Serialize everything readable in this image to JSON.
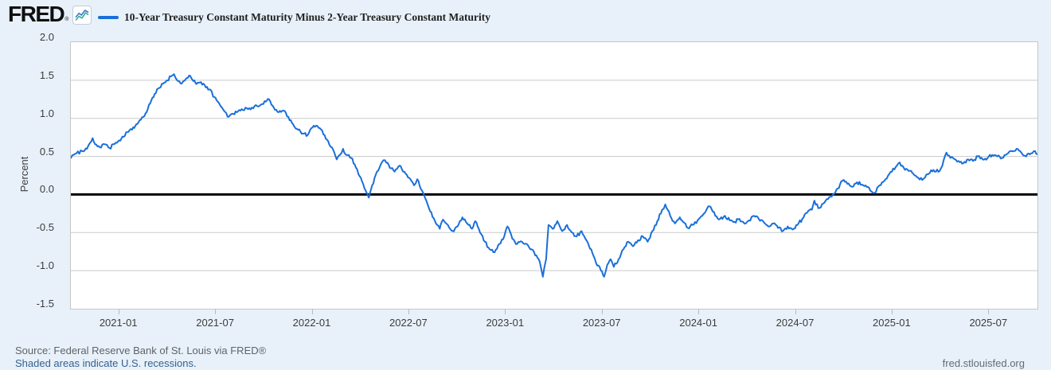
{
  "header": {
    "logo_text": "FRED",
    "logo_registered": "®",
    "legend_label": "10-Year Treasury Constant Maturity Minus 2-Year Treasury Constant Maturity"
  },
  "footer": {
    "source_line": "Source: Federal Reserve Bank of St. Louis via FRED®",
    "recessions_note": "Shaded areas indicate U.S. recessions.",
    "site_link": "fred.stlouisfed.org"
  },
  "colors": {
    "page_bg": "#e8f1fa",
    "plot_bg": "#ffffff",
    "gridline": "#cacaca",
    "plot_border": "#c6c6c6",
    "zero_line": "#000000",
    "series_line": "#1a6fd8",
    "tick_mark": "#aebccd",
    "badge_line_blue": "#3f7ac0",
    "badge_line_teal": "#3fae9e"
  },
  "chart_data": {
    "type": "line",
    "title": "10-Year Treasury Constant Maturity Minus 2-Year Treasury Constant Maturity",
    "xlabel": "",
    "ylabel": "Percent",
    "ylim": [
      -1.5,
      2.0
    ],
    "yticks": [
      2.0,
      1.5,
      1.0,
      0.5,
      0.0,
      -0.5,
      -1.0,
      -1.5
    ],
    "grid": true,
    "zero_line": true,
    "legend_position": "top-left",
    "x_start": "2020-10",
    "x_end": "2025-10",
    "x_total_months": 60,
    "xticks": [
      {
        "m": 3,
        "label": "2021-01"
      },
      {
        "m": 9,
        "label": "2021-07"
      },
      {
        "m": 15,
        "label": "2022-01"
      },
      {
        "m": 21,
        "label": "2022-07"
      },
      {
        "m": 27,
        "label": "2023-01"
      },
      {
        "m": 33,
        "label": "2023-07"
      },
      {
        "m": 39,
        "label": "2024-01"
      },
      {
        "m": 45,
        "label": "2024-07"
      },
      {
        "m": 51,
        "label": "2025-01"
      },
      {
        "m": 57,
        "label": "2025-07"
      }
    ],
    "noise_amplitude": 0.022,
    "series": [
      {
        "name": "10-Year Treasury Constant Maturity Minus 2-Year Treasury Constant Maturity",
        "units": "Percent",
        "points": [
          [
            0,
            0.48
          ],
          [
            0.35,
            0.54
          ],
          [
            0.7,
            0.57
          ],
          [
            1.0,
            0.6
          ],
          [
            1.2,
            0.68
          ],
          [
            1.35,
            0.74
          ],
          [
            1.5,
            0.66
          ],
          [
            1.8,
            0.62
          ],
          [
            2.1,
            0.66
          ],
          [
            2.4,
            0.61
          ],
          [
            2.7,
            0.66
          ],
          [
            3.0,
            0.71
          ],
          [
            3.2,
            0.76
          ],
          [
            3.5,
            0.82
          ],
          [
            3.8,
            0.85
          ],
          [
            4.0,
            0.9
          ],
          [
            4.2,
            0.95
          ],
          [
            4.5,
            1.02
          ],
          [
            4.7,
            1.08
          ],
          [
            4.85,
            1.18
          ],
          [
            5.0,
            1.24
          ],
          [
            5.2,
            1.32
          ],
          [
            5.5,
            1.4
          ],
          [
            5.8,
            1.47
          ],
          [
            6.0,
            1.5
          ],
          [
            6.2,
            1.55
          ],
          [
            6.4,
            1.58
          ],
          [
            6.6,
            1.5
          ],
          [
            6.8,
            1.46
          ],
          [
            7.0,
            1.49
          ],
          [
            7.2,
            1.53
          ],
          [
            7.4,
            1.56
          ],
          [
            7.6,
            1.49
          ],
          [
            7.8,
            1.45
          ],
          [
            8.0,
            1.47
          ],
          [
            8.3,
            1.44
          ],
          [
            8.6,
            1.38
          ],
          [
            8.9,
            1.28
          ],
          [
            9.2,
            1.2
          ],
          [
            9.5,
            1.1
          ],
          [
            9.8,
            1.02
          ],
          [
            10.0,
            1.06
          ],
          [
            10.3,
            1.08
          ],
          [
            10.6,
            1.12
          ],
          [
            11.0,
            1.12
          ],
          [
            11.4,
            1.16
          ],
          [
            11.8,
            1.18
          ],
          [
            12.1,
            1.22
          ],
          [
            12.3,
            1.25
          ],
          [
            12.6,
            1.14
          ],
          [
            12.9,
            1.08
          ],
          [
            13.2,
            1.1
          ],
          [
            13.5,
            1.02
          ],
          [
            13.8,
            0.92
          ],
          [
            14.1,
            0.85
          ],
          [
            14.4,
            0.8
          ],
          [
            14.7,
            0.78
          ],
          [
            15.0,
            0.88
          ],
          [
            15.3,
            0.9
          ],
          [
            15.6,
            0.84
          ],
          [
            15.9,
            0.72
          ],
          [
            16.2,
            0.62
          ],
          [
            16.5,
            0.46
          ],
          [
            16.7,
            0.52
          ],
          [
            16.9,
            0.6
          ],
          [
            17.1,
            0.52
          ],
          [
            17.4,
            0.48
          ],
          [
            17.7,
            0.35
          ],
          [
            18.0,
            0.22
          ],
          [
            18.3,
            0.05
          ],
          [
            18.5,
            -0.04
          ],
          [
            18.7,
            0.12
          ],
          [
            19.0,
            0.3
          ],
          [
            19.3,
            0.42
          ],
          [
            19.5,
            0.45
          ],
          [
            19.8,
            0.35
          ],
          [
            20.1,
            0.3
          ],
          [
            20.4,
            0.38
          ],
          [
            20.7,
            0.3
          ],
          [
            21.0,
            0.22
          ],
          [
            21.3,
            0.12
          ],
          [
            21.5,
            0.2
          ],
          [
            21.8,
            0.05
          ],
          [
            22.0,
            -0.05
          ],
          [
            22.3,
            -0.22
          ],
          [
            22.6,
            -0.35
          ],
          [
            22.9,
            -0.45
          ],
          [
            23.1,
            -0.33
          ],
          [
            23.4,
            -0.4
          ],
          [
            23.7,
            -0.48
          ],
          [
            24.0,
            -0.42
          ],
          [
            24.3,
            -0.3
          ],
          [
            24.6,
            -0.38
          ],
          [
            24.9,
            -0.45
          ],
          [
            25.1,
            -0.35
          ],
          [
            25.4,
            -0.5
          ],
          [
            25.7,
            -0.62
          ],
          [
            26.0,
            -0.72
          ],
          [
            26.3,
            -0.76
          ],
          [
            26.6,
            -0.65
          ],
          [
            26.9,
            -0.55
          ],
          [
            27.1,
            -0.42
          ],
          [
            27.4,
            -0.58
          ],
          [
            27.7,
            -0.65
          ],
          [
            28.0,
            -0.62
          ],
          [
            28.3,
            -0.65
          ],
          [
            28.6,
            -0.72
          ],
          [
            28.9,
            -0.8
          ],
          [
            29.1,
            -0.88
          ],
          [
            29.3,
            -1.08
          ],
          [
            29.5,
            -0.85
          ],
          [
            29.65,
            -0.4
          ],
          [
            29.9,
            -0.45
          ],
          [
            30.2,
            -0.35
          ],
          [
            30.5,
            -0.48
          ],
          [
            30.8,
            -0.4
          ],
          [
            31.1,
            -0.5
          ],
          [
            31.4,
            -0.55
          ],
          [
            31.7,
            -0.48
          ],
          [
            32.0,
            -0.6
          ],
          [
            32.3,
            -0.72
          ],
          [
            32.6,
            -0.9
          ],
          [
            32.9,
            -1.0
          ],
          [
            33.1,
            -1.08
          ],
          [
            33.3,
            -0.92
          ],
          [
            33.5,
            -0.85
          ],
          [
            33.7,
            -0.95
          ],
          [
            34.0,
            -0.85
          ],
          [
            34.3,
            -0.72
          ],
          [
            34.6,
            -0.62
          ],
          [
            34.9,
            -0.68
          ],
          [
            35.2,
            -0.6
          ],
          [
            35.5,
            -0.55
          ],
          [
            35.8,
            -0.62
          ],
          [
            36.1,
            -0.48
          ],
          [
            36.4,
            -0.35
          ],
          [
            36.7,
            -0.2
          ],
          [
            36.9,
            -0.13
          ],
          [
            37.2,
            -0.28
          ],
          [
            37.5,
            -0.38
          ],
          [
            37.8,
            -0.3
          ],
          [
            38.0,
            -0.36
          ],
          [
            38.3,
            -0.44
          ],
          [
            38.6,
            -0.4
          ],
          [
            38.9,
            -0.34
          ],
          [
            39.2,
            -0.28
          ],
          [
            39.5,
            -0.18
          ],
          [
            39.7,
            -0.16
          ],
          [
            40.0,
            -0.28
          ],
          [
            40.3,
            -0.32
          ],
          [
            40.6,
            -0.28
          ],
          [
            40.9,
            -0.34
          ],
          [
            41.2,
            -0.36
          ],
          [
            41.5,
            -0.32
          ],
          [
            41.8,
            -0.38
          ],
          [
            42.1,
            -0.34
          ],
          [
            42.4,
            -0.28
          ],
          [
            42.7,
            -0.32
          ],
          [
            43.0,
            -0.36
          ],
          [
            43.3,
            -0.42
          ],
          [
            43.6,
            -0.38
          ],
          [
            43.9,
            -0.44
          ],
          [
            44.2,
            -0.48
          ],
          [
            44.5,
            -0.42
          ],
          [
            44.8,
            -0.46
          ],
          [
            45.1,
            -0.4
          ],
          [
            45.4,
            -0.32
          ],
          [
            45.7,
            -0.24
          ],
          [
            46.0,
            -0.2
          ],
          [
            46.15,
            -0.08
          ],
          [
            46.4,
            -0.18
          ],
          [
            46.7,
            -0.12
          ],
          [
            47.0,
            -0.06
          ],
          [
            47.3,
            0.0
          ],
          [
            47.6,
            0.08
          ],
          [
            47.9,
            0.18
          ],
          [
            48.2,
            0.14
          ],
          [
            48.5,
            0.1
          ],
          [
            48.8,
            0.16
          ],
          [
            49.1,
            0.13
          ],
          [
            49.4,
            0.1
          ],
          [
            49.7,
            0.04
          ],
          [
            49.9,
            0.02
          ],
          [
            50.2,
            0.12
          ],
          [
            50.5,
            0.18
          ],
          [
            50.8,
            0.27
          ],
          [
            51.2,
            0.36
          ],
          [
            51.45,
            0.42
          ],
          [
            51.7,
            0.35
          ],
          [
            52.0,
            0.31
          ],
          [
            52.3,
            0.27
          ],
          [
            52.6,
            0.22
          ],
          [
            52.85,
            0.19
          ],
          [
            53.1,
            0.26
          ],
          [
            53.4,
            0.32
          ],
          [
            53.7,
            0.3
          ],
          [
            54.0,
            0.34
          ],
          [
            54.35,
            0.55
          ],
          [
            54.6,
            0.48
          ],
          [
            55.1,
            0.44
          ],
          [
            55.4,
            0.41
          ],
          [
            55.7,
            0.46
          ],
          [
            56.0,
            0.44
          ],
          [
            56.3,
            0.5
          ],
          [
            56.6,
            0.46
          ],
          [
            56.9,
            0.48
          ],
          [
            57.2,
            0.52
          ],
          [
            57.5,
            0.5
          ],
          [
            57.8,
            0.48
          ],
          [
            58.1,
            0.53
          ],
          [
            58.4,
            0.57
          ],
          [
            58.7,
            0.6
          ],
          [
            59.0,
            0.55
          ],
          [
            59.3,
            0.5
          ],
          [
            59.6,
            0.54
          ],
          [
            59.85,
            0.57
          ],
          [
            60.0,
            0.53
          ]
        ]
      }
    ]
  }
}
